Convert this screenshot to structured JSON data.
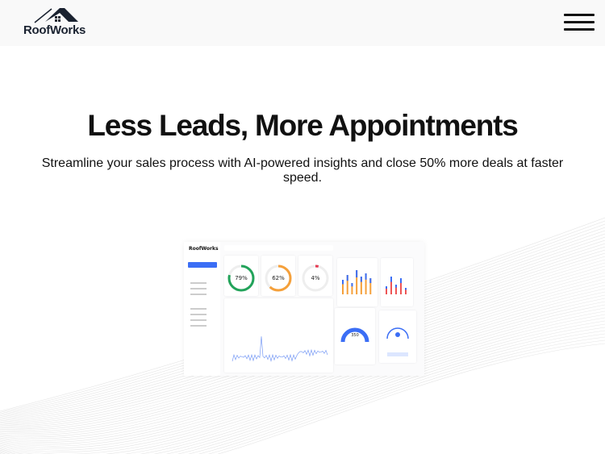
{
  "header": {
    "logo_text": "RoofWorks",
    "menu_icon": "hamburger-icon"
  },
  "hero": {
    "title": "Less Leads, More Appointments",
    "subtitle": "Streamline your sales process with AI-powered insights and close 50% more deals at faster speed."
  },
  "dashboard": {
    "logo_text": "RoofWorks",
    "gauges": [
      {
        "value": "79%",
        "percent": 79,
        "color": "#22a35a"
      },
      {
        "value": "62%",
        "percent": 62,
        "color": "#f5a03a"
      },
      {
        "value": "4%",
        "percent": 4,
        "color": "#e53950"
      }
    ],
    "big_gauge_value": "350",
    "accent": "#3b6ef5"
  }
}
